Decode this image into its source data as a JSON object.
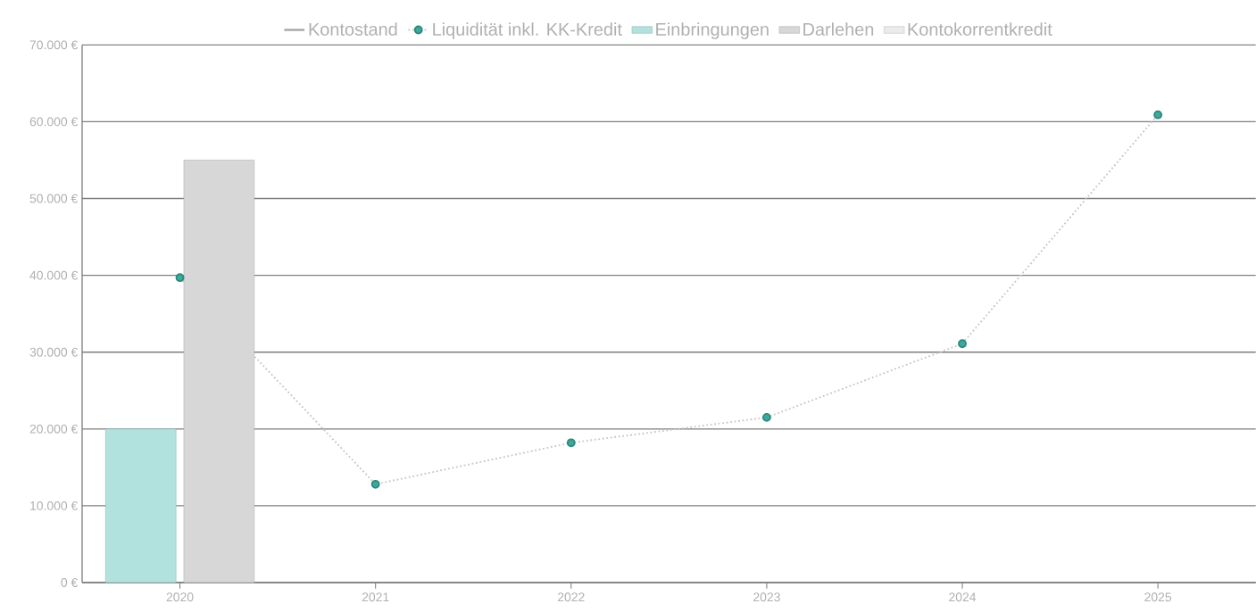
{
  "chart_data": {
    "type": "bar",
    "categories": [
      "2020",
      "2021",
      "2022",
      "2023",
      "2024",
      "2025"
    ],
    "series": [
      {
        "name": "Kontostand",
        "type": "line",
        "color": "#a6a6a6",
        "line_style": "solid",
        "values": [
          null,
          null,
          null,
          null,
          null,
          null
        ]
      },
      {
        "name": "Liquidität inkl. KK-Kredit",
        "type": "line",
        "color": "#c8c8c8",
        "line_style": "dotted",
        "marker": "circle",
        "values": [
          39700,
          12800,
          18200,
          21500,
          31100,
          60900
        ]
      },
      {
        "name": "Einbringungen",
        "color": "#b2e2dd",
        "values": [
          20000,
          null,
          null,
          null,
          null,
          null
        ]
      },
      {
        "name": "Darlehen",
        "color": "#d7d7d7",
        "values": [
          55000,
          null,
          null,
          null,
          null,
          null
        ]
      },
      {
        "name": "Kontokorrentkredit",
        "color": "#ebebeb",
        "values": [
          null,
          null,
          null,
          null,
          null,
          null
        ]
      }
    ],
    "ylim": [
      0,
      70000
    ],
    "yticks": [
      {
        "value": 0,
        "label": "0 €"
      },
      {
        "value": 10000,
        "label": "10.000 €"
      },
      {
        "value": 20000,
        "label": "20.000 €"
      },
      {
        "value": 30000,
        "label": "30.000 €"
      },
      {
        "value": 40000,
        "label": "40.000 €"
      },
      {
        "value": 50000,
        "label": "50.000 €"
      },
      {
        "value": 60000,
        "label": "60.000 €"
      },
      {
        "value": 70000,
        "label": "70.000 €"
      }
    ],
    "grid": "y",
    "legend": "top"
  }
}
